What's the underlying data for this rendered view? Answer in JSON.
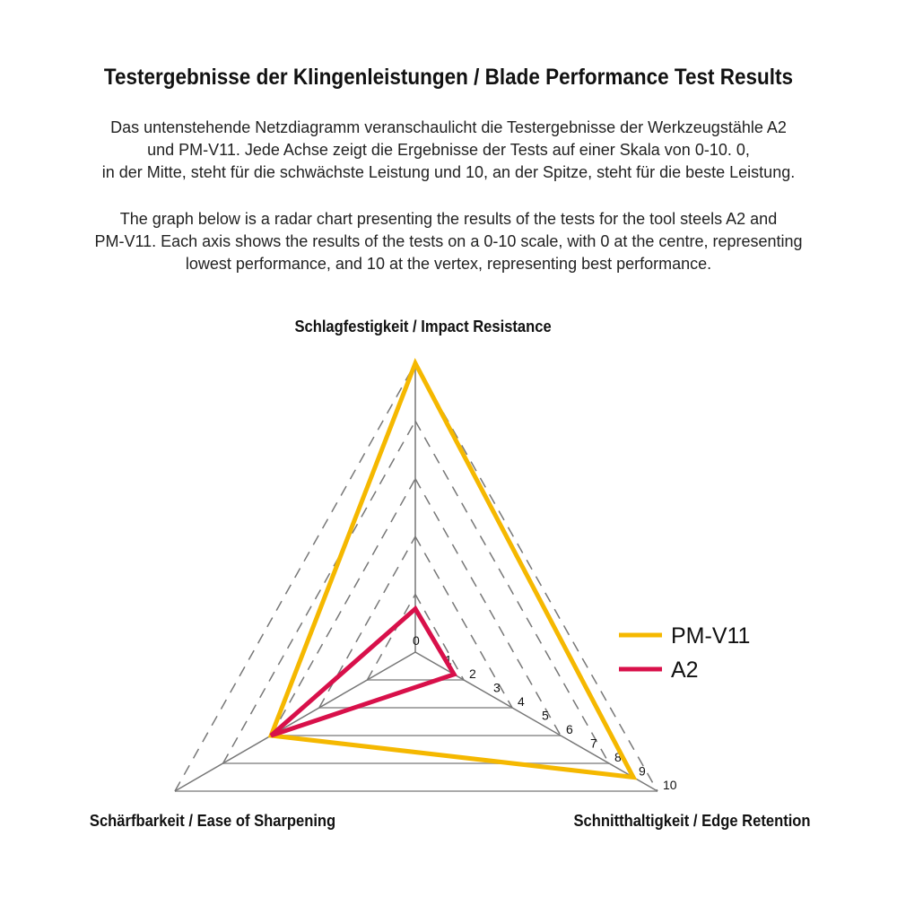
{
  "title": "Testergebnisse der Klingenleistungen / Blade Performance Test Results",
  "description_de": [
    "Das untenstehende Netzdiagramm veranschaulicht die Testergebnisse der Werkzeugstähle A2",
    "und PM-V11. Jede Achse zeigt die Ergebnisse der Tests auf einer Skala von 0-10. 0,",
    "in der Mitte, steht für die schwächste Leistung und 10, an der Spitze, steht für die beste Leistung."
  ],
  "description_en": [
    "The graph below is a radar chart presenting the results of the tests for the tool steels A2 and",
    "PM-V11. Each axis shows the results of the tests on a 0-10 scale, with 0 at the centre, representing",
    "lowest performance, and 10 at the vertex, representing best performance."
  ],
  "chart_data": {
    "type": "radar",
    "axes": [
      "Schlagfestigkeit / Impact Resistance",
      "Schnitthaltigkeit / Edge Retention",
      "Schärfbarkeit / Ease of Sharpening"
    ],
    "range": [
      0,
      10
    ],
    "ticks": [
      "0",
      "1",
      "2",
      "3",
      "4",
      "5",
      "6",
      "7",
      "8",
      "9",
      "10"
    ],
    "series": [
      {
        "name": "PM-V11",
        "color": "#f5b800",
        "values": [
          10,
          9,
          6
        ]
      },
      {
        "name": "A2",
        "color": "#d8104a",
        "values": [
          1.5,
          1.6,
          6
        ]
      }
    ],
    "legend_position": "right",
    "grid": true
  }
}
